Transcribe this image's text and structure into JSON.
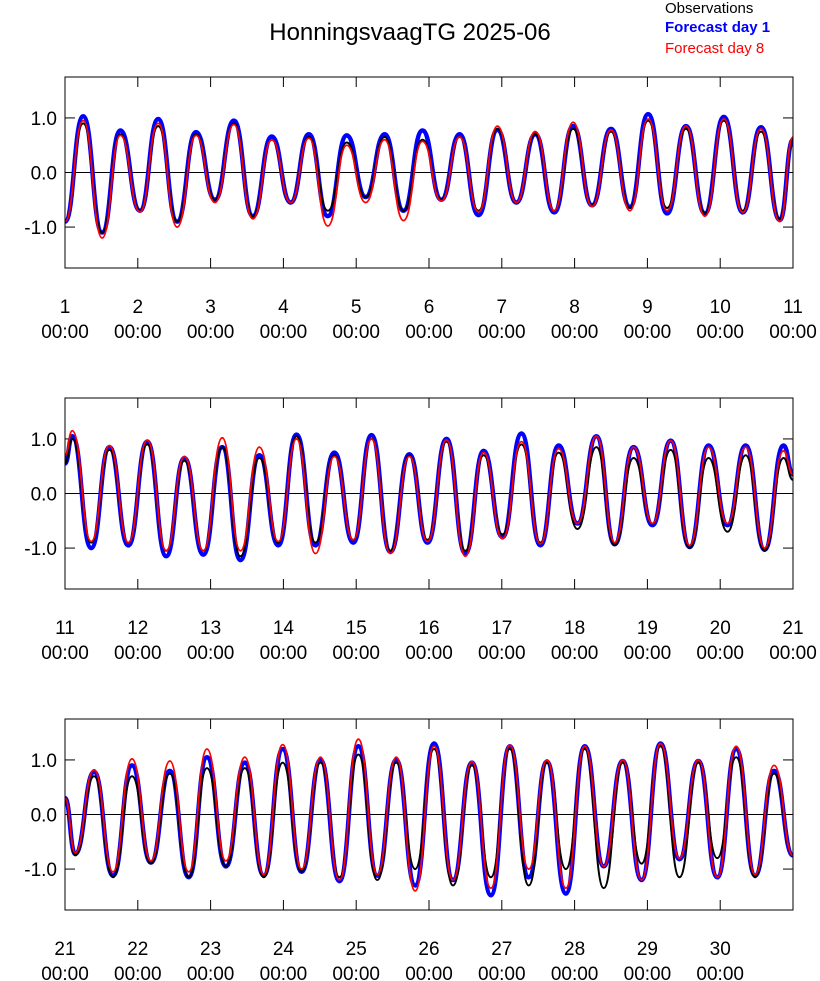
{
  "chart_data": [
    {
      "type": "line",
      "title": "HonningsvaagTG 2025-06",
      "xlim": [
        1,
        11
      ],
      "ylim": [
        -1.75,
        1.75
      ],
      "xticks": [
        {
          "value": 1,
          "label": [
            "1",
            "00:00"
          ]
        },
        {
          "value": 2,
          "label": [
            "2",
            "00:00"
          ]
        },
        {
          "value": 3,
          "label": [
            "3",
            "00:00"
          ]
        },
        {
          "value": 4,
          "label": [
            "4",
            "00:00"
          ]
        },
        {
          "value": 5,
          "label": [
            "5",
            "00:00"
          ]
        },
        {
          "value": 6,
          "label": [
            "6",
            "00:00"
          ]
        },
        {
          "value": 7,
          "label": [
            "7",
            "00:00"
          ]
        },
        {
          "value": 8,
          "label": [
            "8",
            "00:00"
          ]
        },
        {
          "value": 9,
          "label": [
            "9",
            "00:00"
          ]
        },
        {
          "value": 10,
          "label": [
            "10",
            "00:00"
          ]
        },
        {
          "value": 11,
          "label": [
            "11",
            "00:00"
          ]
        }
      ],
      "yticks": [
        {
          "value": -1,
          "label": "-1.0"
        },
        {
          "value": 0,
          "label": "0.0"
        },
        {
          "value": 1,
          "label": "1.0"
        }
      ],
      "reference_line": 0,
      "x": [
        1,
        1.25,
        1.51,
        1.76,
        2.03,
        2.28,
        2.54,
        2.8,
        3.06,
        3.32,
        3.58,
        3.84,
        4.1,
        4.35,
        4.61,
        4.87,
        5.13,
        5.39,
        5.65,
        5.91,
        6.17,
        6.42,
        6.68,
        6.94,
        7.2,
        7.46,
        7.72,
        7.98,
        8.24,
        8.5,
        8.76,
        9.01,
        9.27,
        9.53,
        9.79,
        10.05,
        10.31,
        10.56,
        10.82,
        11
      ],
      "series": [
        {
          "name": "Forecast day 1",
          "color": "#0000ff",
          "width": 4.5,
          "values": [
            -0.9,
            1.03,
            -1.1,
            0.77,
            -0.7,
            0.98,
            -0.9,
            0.74,
            -0.5,
            0.95,
            -0.8,
            0.66,
            -0.55,
            0.7,
            -0.8,
            0.68,
            -0.45,
            0.7,
            -0.7,
            0.77,
            -0.5,
            0.7,
            -0.78,
            0.78,
            -0.55,
            0.7,
            -0.73,
            0.85,
            -0.6,
            0.8,
            -0.63,
            1.07,
            -0.75,
            0.85,
            -0.75,
            1.02,
            -0.73,
            0.83,
            -0.87,
            0.6
          ]
        },
        {
          "name": "Observations",
          "color": "#000000",
          "width": 2,
          "values": [
            -0.9,
            0.9,
            -1.1,
            0.7,
            -0.7,
            0.85,
            -0.9,
            0.7,
            -0.5,
            0.9,
            -0.8,
            0.6,
            -0.55,
            0.65,
            -0.7,
            0.55,
            -0.45,
            0.65,
            -0.7,
            0.6,
            -0.5,
            0.65,
            -0.7,
            0.8,
            -0.55,
            0.7,
            -0.7,
            0.8,
            -0.6,
            0.75,
            -0.65,
            0.95,
            -0.65,
            0.8,
            -0.75,
            0.95,
            -0.7,
            0.75,
            -0.85,
            0.6
          ]
        },
        {
          "name": "Forecast day 8",
          "color": "#ff0000",
          "width": 1.8,
          "values": [
            -0.9,
            0.95,
            -1.2,
            0.68,
            -0.72,
            0.9,
            -1.0,
            0.68,
            -0.55,
            0.88,
            -0.85,
            0.6,
            -0.55,
            0.63,
            -0.98,
            0.5,
            -0.55,
            0.6,
            -0.88,
            0.57,
            -0.52,
            0.65,
            -0.72,
            0.85,
            -0.55,
            0.75,
            -0.7,
            0.92,
            -0.62,
            0.78,
            -0.7,
            0.98,
            -0.7,
            0.85,
            -0.8,
            0.98,
            -0.73,
            0.8,
            -0.9,
            0.65
          ]
        }
      ]
    },
    {
      "type": "line",
      "xlim": [
        11,
        21
      ],
      "ylim": [
        -1.75,
        1.75
      ],
      "xticks": [
        {
          "value": 11,
          "label": [
            "11",
            "00:00"
          ]
        },
        {
          "value": 12,
          "label": [
            "12",
            "00:00"
          ]
        },
        {
          "value": 13,
          "label": [
            "13",
            "00:00"
          ]
        },
        {
          "value": 14,
          "label": [
            "14",
            "00:00"
          ]
        },
        {
          "value": 15,
          "label": [
            "15",
            "00:00"
          ]
        },
        {
          "value": 16,
          "label": [
            "16",
            "00:00"
          ]
        },
        {
          "value": 17,
          "label": [
            "17",
            "00:00"
          ]
        },
        {
          "value": 18,
          "label": [
            "18",
            "00:00"
          ]
        },
        {
          "value": 19,
          "label": [
            "19",
            "00:00"
          ]
        },
        {
          "value": 20,
          "label": [
            "20",
            "00:00"
          ]
        },
        {
          "value": 21,
          "label": [
            "21",
            "00:00"
          ]
        }
      ],
      "yticks": [
        {
          "value": -1,
          "label": "-1.0"
        },
        {
          "value": 0,
          "label": "0.0"
        },
        {
          "value": 1,
          "label": "1.0"
        }
      ],
      "reference_line": 0,
      "x": [
        11,
        11.1,
        11.36,
        11.61,
        11.87,
        12.13,
        12.39,
        12.64,
        12.9,
        13.16,
        13.41,
        13.67,
        13.93,
        14.18,
        14.44,
        14.7,
        14.96,
        15.21,
        15.47,
        15.73,
        15.98,
        16.24,
        16.5,
        16.75,
        17.01,
        17.27,
        17.53,
        17.78,
        18.04,
        18.3,
        18.55,
        18.81,
        19.07,
        19.32,
        19.58,
        19.84,
        20.1,
        20.35,
        20.61,
        20.87,
        21
      ],
      "series": [
        {
          "name": "Forecast day 1",
          "color": "#0000ff",
          "width": 4.5,
          "values": [
            0.55,
            1.05,
            -1.0,
            0.85,
            -0.95,
            0.95,
            -1.15,
            0.65,
            -1.12,
            0.85,
            -1.22,
            0.7,
            -0.95,
            1.08,
            -0.95,
            0.75,
            -0.9,
            1.07,
            -1.07,
            0.72,
            -0.9,
            1.0,
            -1.1,
            0.78,
            -0.8,
            1.1,
            -0.95,
            0.88,
            -0.55,
            1.05,
            -0.93,
            0.85,
            -0.58,
            0.97,
            -0.98,
            0.88,
            -0.58,
            0.88,
            -1.03,
            0.88,
            0.35
          ]
        },
        {
          "name": "Observations",
          "color": "#000000",
          "width": 2,
          "values": [
            0.55,
            1.0,
            -0.9,
            0.8,
            -0.9,
            0.9,
            -1.05,
            0.6,
            -1.05,
            0.85,
            -1.15,
            0.65,
            -0.9,
            1.05,
            -0.9,
            0.7,
            -0.85,
            1.0,
            -1.05,
            0.7,
            -0.85,
            0.95,
            -1.05,
            0.7,
            -0.75,
            0.9,
            -0.9,
            0.75,
            -0.65,
            0.85,
            -0.95,
            0.65,
            -0.55,
            0.8,
            -1.0,
            0.65,
            -0.7,
            0.7,
            -1.05,
            0.65,
            0.25
          ]
        },
        {
          "name": "Forecast day 8",
          "color": "#ff0000",
          "width": 1.8,
          "values": [
            0.7,
            1.15,
            -0.88,
            0.88,
            -0.9,
            0.98,
            -1.05,
            0.68,
            -1.05,
            1.02,
            -1.05,
            0.85,
            -0.88,
            1.0,
            -1.1,
            0.68,
            -0.85,
            1.0,
            -1.1,
            0.68,
            -0.88,
            0.98,
            -1.15,
            0.75,
            -0.83,
            0.95,
            -0.92,
            0.82,
            -0.55,
            1.05,
            -0.9,
            0.85,
            -0.55,
            0.97,
            -0.95,
            0.85,
            -0.55,
            0.85,
            -1.0,
            0.78,
            0.35
          ]
        }
      ]
    },
    {
      "type": "line",
      "xlim": [
        21,
        31
      ],
      "ylim": [
        -1.75,
        1.75
      ],
      "xticks": [
        {
          "value": 21,
          "label": [
            "21",
            "00:00"
          ]
        },
        {
          "value": 22,
          "label": [
            "22",
            "00:00"
          ]
        },
        {
          "value": 23,
          "label": [
            "23",
            "00:00"
          ]
        },
        {
          "value": 24,
          "label": [
            "24",
            "00:00"
          ]
        },
        {
          "value": 25,
          "label": [
            "25",
            "00:00"
          ]
        },
        {
          "value": 26,
          "label": [
            "26",
            "00:00"
          ]
        },
        {
          "value": 27,
          "label": [
            "27",
            "00:00"
          ]
        },
        {
          "value": 28,
          "label": [
            "28",
            "00:00"
          ]
        },
        {
          "value": 29,
          "label": [
            "29",
            "00:00"
          ]
        },
        {
          "value": 30,
          "label": [
            "30",
            "00:00"
          ]
        }
      ],
      "yticks": [
        {
          "value": -1,
          "label": "-1.0"
        },
        {
          "value": 0,
          "label": "0.0"
        },
        {
          "value": 1,
          "label": "1.0"
        }
      ],
      "reference_line": 0,
      "x": [
        21,
        21.14,
        21.4,
        21.66,
        21.92,
        22.18,
        22.44,
        22.7,
        22.95,
        23.21,
        23.47,
        23.73,
        23.99,
        24.25,
        24.51,
        24.77,
        25.03,
        25.29,
        25.55,
        25.81,
        26.07,
        26.33,
        26.59,
        26.85,
        27.11,
        27.37,
        27.62,
        27.88,
        28.14,
        28.4,
        28.66,
        28.92,
        29.18,
        29.44,
        29.7,
        29.96,
        30.22,
        30.48,
        30.74,
        31
      ],
      "series": [
        {
          "name": "Forecast day 1",
          "color": "#0000ff",
          "width": 4.5,
          "values": [
            0.3,
            -0.72,
            0.78,
            -1.12,
            0.9,
            -0.88,
            0.8,
            -1.15,
            1.05,
            -0.95,
            0.95,
            -1.12,
            1.2,
            -1.05,
            1.0,
            -1.22,
            1.25,
            -1.12,
            1.0,
            -1.3,
            1.3,
            -1.2,
            0.95,
            -1.48,
            1.25,
            -1.15,
            0.97,
            -1.45,
            1.25,
            -0.95,
            0.98,
            -1.2,
            1.3,
            -0.82,
            0.98,
            -1.15,
            1.2,
            -1.12,
            0.8,
            -0.75
          ]
        },
        {
          "name": "Observations",
          "color": "#000000",
          "width": 2,
          "values": [
            0.3,
            -0.75,
            0.7,
            -1.15,
            0.7,
            -0.9,
            0.75,
            -1.15,
            0.85,
            -0.95,
            0.85,
            -1.15,
            0.95,
            -1.05,
            0.95,
            -1.15,
            1.1,
            -1.2,
            0.95,
            -1.0,
            1.2,
            -1.3,
            0.9,
            -1.15,
            1.2,
            -1.3,
            0.95,
            -1.0,
            1.2,
            -1.35,
            0.95,
            -0.9,
            1.25,
            -1.15,
            0.95,
            -0.8,
            1.05,
            -1.15,
            0.75,
            -0.75
          ]
        },
        {
          "name": "Forecast day 8",
          "color": "#ff0000",
          "width": 1.8,
          "values": [
            0.3,
            -0.7,
            0.82,
            -1.05,
            1.02,
            -0.85,
            0.98,
            -1.05,
            1.2,
            -0.85,
            1.05,
            -1.1,
            1.28,
            -1.0,
            1.05,
            -1.2,
            1.38,
            -1.1,
            1.05,
            -1.4,
            1.25,
            -1.2,
            0.97,
            -1.35,
            1.27,
            -1.0,
            1.0,
            -1.35,
            1.25,
            -0.95,
            1.0,
            -1.2,
            1.3,
            -0.8,
            1.0,
            -1.15,
            1.25,
            -1.1,
            0.9,
            -0.75
          ]
        }
      ]
    }
  ]
}
